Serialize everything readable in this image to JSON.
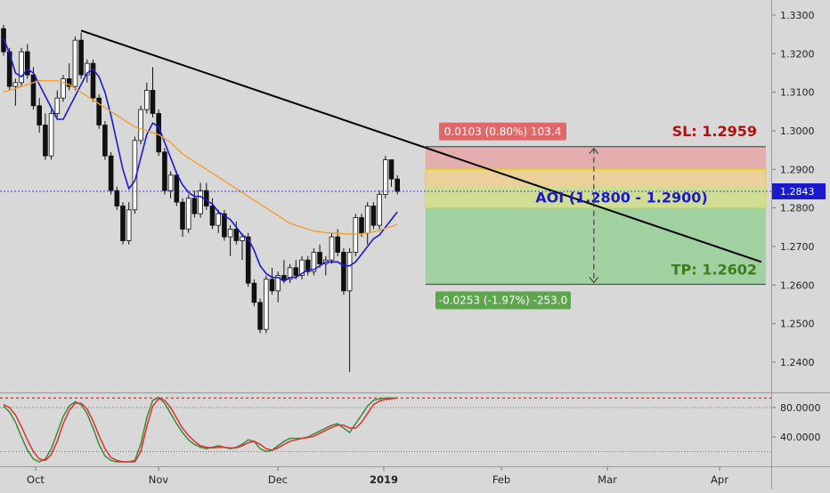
{
  "chart_data": [
    {
      "type": "candlestick",
      "title": "",
      "x_ticks": [
        "Oct",
        "Nov",
        "Dec",
        "2019",
        "Feb",
        "Mar",
        "Apr"
      ],
      "y_ticks": [
        "1.3300",
        "1.3200",
        "1.3100",
        "1.3000",
        "1.2900",
        "1.2800",
        "1.2700",
        "1.2600",
        "1.2500",
        "1.2400"
      ],
      "ylim": [
        1.2335,
        1.3345
      ],
      "grid": false,
      "last_price": "1.2843",
      "candles_ohlc": [
        [
          1.3265,
          1.3275,
          1.3195,
          1.3205
        ],
        [
          1.3205,
          1.3215,
          1.3105,
          1.3115
        ],
        [
          1.3115,
          1.3135,
          1.3065,
          1.3125
        ],
        [
          1.3125,
          1.3215,
          1.3115,
          1.3205
        ],
        [
          1.3205,
          1.3225,
          1.3135,
          1.3145
        ],
        [
          1.3145,
          1.3165,
          1.3055,
          1.3065
        ],
        [
          1.3065,
          1.3085,
          1.2995,
          1.3015
        ],
        [
          1.3015,
          1.3045,
          1.2925,
          1.2935
        ],
        [
          1.2935,
          1.3055,
          1.2925,
          1.3045
        ],
        [
          1.3045,
          1.3105,
          1.3035,
          1.3085
        ],
        [
          1.3085,
          1.3145,
          1.3075,
          1.3135
        ],
        [
          1.3135,
          1.3175,
          1.3105,
          1.3115
        ],
        [
          1.3115,
          1.3245,
          1.3105,
          1.3235
        ],
        [
          1.3235,
          1.3255,
          1.3135,
          1.3145
        ],
        [
          1.3145,
          1.3185,
          1.3125,
          1.3175
        ],
        [
          1.3175,
          1.3185,
          1.3075,
          1.3085
        ],
        [
          1.3085,
          1.3095,
          1.3005,
          1.3015
        ],
        [
          1.3015,
          1.3025,
          1.2925,
          1.2935
        ],
        [
          1.2935,
          1.2945,
          1.2835,
          1.2845
        ],
        [
          1.2845,
          1.2855,
          1.2795,
          1.2805
        ],
        [
          1.2805,
          1.2815,
          1.2705,
          1.2715
        ],
        [
          1.2715,
          1.2815,
          1.2705,
          1.2795
        ],
        [
          1.2795,
          1.2985,
          1.2785,
          1.2975
        ],
        [
          1.2975,
          1.3065,
          1.2965,
          1.3055
        ],
        [
          1.3055,
          1.3125,
          1.3045,
          1.3105
        ],
        [
          1.3105,
          1.3165,
          1.3035,
          1.3045
        ],
        [
          1.3045,
          1.3055,
          1.2935,
          1.2945
        ],
        [
          1.2945,
          1.2955,
          1.2835,
          1.2845
        ],
        [
          1.2845,
          1.2895,
          1.2825,
          1.2885
        ],
        [
          1.2885,
          1.2895,
          1.2805,
          1.2815
        ],
        [
          1.2815,
          1.2825,
          1.2725,
          1.2745
        ],
        [
          1.2745,
          1.2835,
          1.2735,
          1.2825
        ],
        [
          1.2825,
          1.2845,
          1.2775,
          1.2785
        ],
        [
          1.2785,
          1.2865,
          1.2775,
          1.2845
        ],
        [
          1.2845,
          1.2865,
          1.2795,
          1.2805
        ],
        [
          1.2805,
          1.2825,
          1.2745,
          1.2755
        ],
        [
          1.2755,
          1.2795,
          1.2735,
          1.2785
        ],
        [
          1.2785,
          1.2795,
          1.2715,
          1.2725
        ],
        [
          1.2725,
          1.2755,
          1.2675,
          1.2745
        ],
        [
          1.2745,
          1.2765,
          1.2705,
          1.2715
        ],
        [
          1.2715,
          1.2735,
          1.2665,
          1.2725
        ],
        [
          1.2725,
          1.2735,
          1.2595,
          1.2605
        ],
        [
          1.2605,
          1.2615,
          1.2545,
          1.2555
        ],
        [
          1.2555,
          1.2565,
          1.2475,
          1.2485
        ],
        [
          1.2485,
          1.2625,
          1.2475,
          1.2615
        ],
        [
          1.2615,
          1.2645,
          1.2575,
          1.2585
        ],
        [
          1.2585,
          1.2635,
          1.2555,
          1.2625
        ],
        [
          1.2625,
          1.2665,
          1.2605,
          1.2615
        ],
        [
          1.2615,
          1.2655,
          1.2605,
          1.2645
        ],
        [
          1.2645,
          1.2665,
          1.2615,
          1.2625
        ],
        [
          1.2625,
          1.2675,
          1.2615,
          1.2665
        ],
        [
          1.2665,
          1.2675,
          1.2625,
          1.2635
        ],
        [
          1.2635,
          1.2695,
          1.2625,
          1.2685
        ],
        [
          1.2685,
          1.2705,
          1.2645,
          1.2655
        ],
        [
          1.2655,
          1.2675,
          1.2625,
          1.2665
        ],
        [
          1.2665,
          1.2735,
          1.2655,
          1.2725
        ],
        [
          1.2725,
          1.2745,
          1.2675,
          1.2685
        ],
        [
          1.2685,
          1.2695,
          1.2575,
          1.2585
        ],
        [
          1.2585,
          1.2695,
          1.2375,
          1.2685
        ],
        [
          1.2685,
          1.2785,
          1.2675,
          1.2775
        ],
        [
          1.2775,
          1.2785,
          1.2725,
          1.2735
        ],
        [
          1.2735,
          1.2815,
          1.2705,
          1.2805
        ],
        [
          1.2805,
          1.2815,
          1.2745,
          1.2755
        ],
        [
          1.2755,
          1.2845,
          1.2745,
          1.2835
        ],
        [
          1.2835,
          1.2935,
          1.2825,
          1.2925
        ],
        [
          1.2925,
          1.2925,
          1.2855,
          1.2875
        ],
        [
          1.2875,
          1.2885,
          1.2835,
          1.2843
        ]
      ],
      "series": [
        {
          "name": "",
          "color": "#1a1acc",
          "values": [
            1.324,
            1.32,
            1.315,
            1.314,
            1.316,
            1.315,
            1.312,
            1.309,
            1.306,
            1.303,
            1.303,
            1.306,
            1.309,
            1.312,
            1.315,
            1.316,
            1.314,
            1.31,
            1.304,
            1.297,
            1.29,
            1.285,
            1.287,
            1.293,
            1.299,
            1.302,
            1.301,
            1.297,
            1.293,
            1.289,
            1.286,
            1.284,
            1.283,
            1.283,
            1.282,
            1.281,
            1.279,
            1.278,
            1.277,
            1.275,
            1.273,
            1.272,
            1.269,
            1.265,
            1.263,
            1.262,
            1.262,
            1.261,
            1.262,
            1.262,
            1.263,
            1.264,
            1.264,
            1.265,
            1.266,
            1.266,
            1.266,
            1.265,
            1.265,
            1.266,
            1.268,
            1.27,
            1.272,
            1.273,
            1.275,
            1.277,
            1.279
          ]
        },
        {
          "name": "",
          "color": "#f0a030",
          "values": [
            1.31,
            1.3105,
            1.311,
            1.3115,
            1.312,
            1.3125,
            1.313,
            1.313,
            1.313,
            1.313,
            1.3125,
            1.312,
            1.311,
            1.31,
            1.309,
            1.308,
            1.307,
            1.306,
            1.305,
            1.304,
            1.303,
            1.302,
            1.301,
            1.3005,
            1.3,
            1.2995,
            1.299,
            1.298,
            1.297,
            1.2955,
            1.294,
            1.293,
            1.292,
            1.291,
            1.29,
            1.289,
            1.288,
            1.287,
            1.286,
            1.285,
            1.284,
            1.283,
            1.282,
            1.281,
            1.28,
            1.279,
            1.278,
            1.277,
            1.276,
            1.2755,
            1.275,
            1.2745,
            1.274,
            1.2738,
            1.2736,
            1.2735,
            1.2734,
            1.2733,
            1.2732,
            1.2732,
            1.2733,
            1.2735,
            1.2738,
            1.2742,
            1.2747,
            1.2752,
            1.2758
          ]
        }
      ],
      "trendline": {
        "start": [
          13,
          1.326
        ],
        "end": [
          127,
          1.266
        ],
        "color": "#000000"
      },
      "position": {
        "stop_label": "SL: 1.2959",
        "target_label": "TP: 1.2602",
        "zone_label": "AOI (1.2800 - 1.2900)",
        "risk_readout": "0.0103 (0.80%) 103.4",
        "reward_readout": "-0.0253 (-1.97%) -253.0",
        "entry": 1.2856,
        "stop": 1.2959,
        "target": 1.2602,
        "zone": [
          1.28,
          1.29
        ],
        "start_index": 71,
        "end_index": 127,
        "colors": {
          "stop_label": "#b01010",
          "target_label": "#3a7d1a",
          "zone_label": "#1a1acc",
          "risk_box": "#e8a0a0",
          "reward_box": "#8fcf8f",
          "zone_box": "#f0e68c"
        }
      }
    },
    {
      "type": "line",
      "title": "",
      "y_ticks": [
        "80.0000",
        "40.0000"
      ],
      "ylim": [
        -5,
        100
      ],
      "reference_lines": [
        80,
        20
      ],
      "series": [
        {
          "name": "",
          "color": "#3a8a3a",
          "values": [
            82,
            74,
            60,
            40,
            22,
            10,
            6,
            10,
            24,
            46,
            68,
            82,
            88,
            84,
            72,
            52,
            30,
            14,
            8,
            6,
            6,
            6,
            8,
            30,
            66,
            90,
            94,
            86,
            72,
            58,
            46,
            36,
            30,
            26,
            24,
            26,
            28,
            26,
            24,
            26,
            30,
            36,
            34,
            24,
            20,
            22,
            28,
            34,
            38,
            38,
            38,
            40,
            44,
            48,
            52,
            56,
            58,
            52,
            46,
            58,
            70,
            82,
            90,
            92,
            93,
            93,
            93
          ]
        },
        {
          "name": "",
          "color": "#e03030",
          "values": [
            84,
            80,
            70,
            54,
            36,
            20,
            10,
            8,
            16,
            34,
            58,
            76,
            86,
            86,
            78,
            62,
            42,
            24,
            12,
            8,
            6,
            6,
            6,
            20,
            54,
            82,
            92,
            90,
            80,
            66,
            52,
            42,
            34,
            28,
            26,
            25,
            26,
            26,
            25,
            25,
            28,
            32,
            34,
            30,
            24,
            22,
            25,
            30,
            34,
            36,
            38,
            39,
            41,
            45,
            49,
            53,
            56,
            56,
            52,
            52,
            60,
            72,
            84,
            89,
            91,
            92,
            93
          ]
        }
      ]
    }
  ],
  "axis_label_color": "#222222",
  "price_badge_color": "#1a1acc"
}
